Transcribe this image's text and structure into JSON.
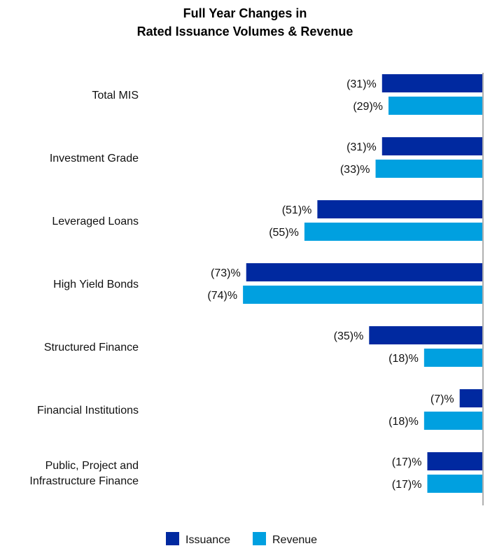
{
  "chart_data": {
    "type": "bar",
    "orientation": "horizontal",
    "title": [
      "Full Year Changes in",
      "Rated Issuance Volumes & Revenue"
    ],
    "categories": [
      [
        "Total MIS"
      ],
      [
        "Investment Grade"
      ],
      [
        "Leveraged Loans"
      ],
      [
        "High Yield Bonds"
      ],
      [
        "Structured Finance"
      ],
      [
        "Financial Institutions"
      ],
      [
        "Public, Project and",
        "Infrastructure Finance"
      ]
    ],
    "series": [
      {
        "name": "Issuance",
        "color": "#0029A0",
        "values": [
          -31,
          -31,
          -51,
          -73,
          -35,
          -7,
          -17
        ],
        "labels": [
          "(31)%",
          "(31)%",
          "(51)%",
          "(73)%",
          "(35)%",
          "(7)%",
          "(17)%"
        ]
      },
      {
        "name": "Revenue",
        "color": "#00A0E0",
        "values": [
          -29,
          -33,
          -55,
          -74,
          -18,
          -18,
          -17
        ],
        "labels": [
          "(29)%",
          "(33)%",
          "(55)%",
          "(74)%",
          "(18)%",
          "(18)%",
          "(17)%"
        ]
      }
    ],
    "xlim": [
      -75,
      0
    ],
    "grid": false,
    "legend": "bottom"
  }
}
